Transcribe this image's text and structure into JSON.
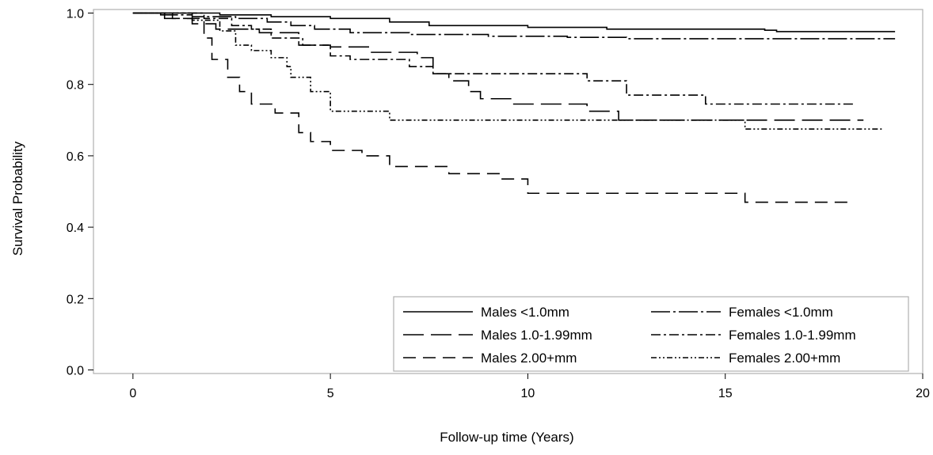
{
  "chart_data": {
    "type": "line",
    "step": true,
    "title": "",
    "xlabel": "Follow-up time (Years)",
    "ylabel": "Survival Probability",
    "xlim": [
      -1,
      20
    ],
    "ylim": [
      -0.01,
      1.01
    ],
    "xticks": [
      0,
      5,
      10,
      15,
      20
    ],
    "yticks": [
      0.0,
      0.2,
      0.4,
      0.6,
      0.8,
      1.0
    ],
    "yticklabels": [
      "0.0",
      "0.2",
      "0.4",
      "0.6",
      "0.8",
      "1.0"
    ],
    "grid": false,
    "legend": {
      "position": "bottom-right",
      "columns": 2
    },
    "series": [
      {
        "name": "Males <1.0mm",
        "color": "#000000",
        "dash": "solid",
        "points": [
          [
            0,
            1.0
          ],
          [
            2.2,
            0.995
          ],
          [
            3.5,
            0.99
          ],
          [
            5,
            0.985
          ],
          [
            6.5,
            0.975
          ],
          [
            7.5,
            0.965
          ],
          [
            10,
            0.96
          ],
          [
            12,
            0.955
          ],
          [
            16,
            0.952
          ],
          [
            16.3,
            0.948
          ],
          [
            19.3,
            0.948
          ]
        ]
      },
      {
        "name": "Females <1.0mm",
        "color": "#000000",
        "dash": "longdashdot",
        "points": [
          [
            0,
            1.0
          ],
          [
            0.7,
            0.995
          ],
          [
            1.5,
            0.99
          ],
          [
            2.6,
            0.985
          ],
          [
            3.4,
            0.975
          ],
          [
            4,
            0.965
          ],
          [
            4.6,
            0.955
          ],
          [
            5.5,
            0.945
          ],
          [
            7,
            0.94
          ],
          [
            9,
            0.935
          ],
          [
            11,
            0.932
          ],
          [
            12.5,
            0.928
          ],
          [
            19.3,
            0.928
          ]
        ]
      },
      {
        "name": "Males 1.0-1.99mm",
        "color": "#000000",
        "dash": "longdash",
        "points": [
          [
            0,
            1.0
          ],
          [
            0.8,
            0.985
          ],
          [
            1.5,
            0.97
          ],
          [
            2.1,
            0.955
          ],
          [
            3.2,
            0.945
          ],
          [
            4.2,
            0.91
          ],
          [
            5,
            0.905
          ],
          [
            6,
            0.89
          ],
          [
            7.2,
            0.875
          ],
          [
            7.6,
            0.83
          ],
          [
            8,
            0.81
          ],
          [
            8.5,
            0.78
          ],
          [
            8.8,
            0.76
          ],
          [
            9.6,
            0.745
          ],
          [
            11.5,
            0.725
          ],
          [
            12.3,
            0.7
          ],
          [
            18.5,
            0.7
          ]
        ]
      },
      {
        "name": "Females 1.0-1.99mm",
        "color": "#000000",
        "dash": "dashdot",
        "points": [
          [
            0,
            1.0
          ],
          [
            1.8,
            0.985
          ],
          [
            2.5,
            0.965
          ],
          [
            3,
            0.955
          ],
          [
            3.5,
            0.93
          ],
          [
            4.3,
            0.91
          ],
          [
            5,
            0.88
          ],
          [
            5.5,
            0.87
          ],
          [
            6,
            0.87
          ],
          [
            7,
            0.85
          ],
          [
            7.6,
            0.83
          ],
          [
            8.5,
            0.83
          ],
          [
            11.5,
            0.81
          ],
          [
            12.5,
            0.77
          ],
          [
            14.5,
            0.745
          ],
          [
            18.3,
            0.745
          ]
        ]
      },
      {
        "name": "Males 2.00+mm",
        "color": "#000000",
        "dash": "dash",
        "points": [
          [
            0,
            1.0
          ],
          [
            1.0,
            0.985
          ],
          [
            1.8,
            0.93
          ],
          [
            2,
            0.87
          ],
          [
            2.4,
            0.82
          ],
          [
            2.7,
            0.78
          ],
          [
            3,
            0.745
          ],
          [
            3.6,
            0.72
          ],
          [
            4.2,
            0.665
          ],
          [
            4.5,
            0.64
          ],
          [
            5,
            0.615
          ],
          [
            5.8,
            0.6
          ],
          [
            6.5,
            0.57
          ],
          [
            8,
            0.55
          ],
          [
            9.3,
            0.535
          ],
          [
            10,
            0.495
          ],
          [
            15.5,
            0.47
          ],
          [
            18.2,
            0.47
          ]
        ]
      },
      {
        "name": "Females 2.00+mm",
        "color": "#000000",
        "dash": "dashdotdot",
        "points": [
          [
            0,
            1.0
          ],
          [
            1.5,
            0.98
          ],
          [
            2.2,
            0.95
          ],
          [
            2.6,
            0.91
          ],
          [
            3,
            0.895
          ],
          [
            3.5,
            0.875
          ],
          [
            3.9,
            0.85
          ],
          [
            4,
            0.82
          ],
          [
            4.5,
            0.78
          ],
          [
            5,
            0.725
          ],
          [
            6.5,
            0.7
          ],
          [
            15.5,
            0.675
          ],
          [
            19,
            0.675
          ]
        ]
      }
    ]
  }
}
